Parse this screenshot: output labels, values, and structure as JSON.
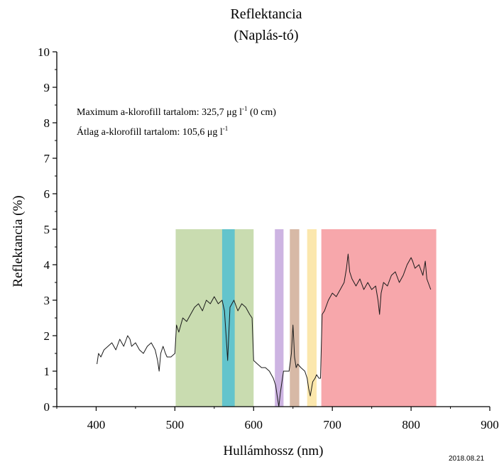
{
  "chart_data": {
    "type": "line",
    "title": "Reflektancia",
    "subtitle": "(Naplás-tó)",
    "xlabel": "Hullámhossz (nm)",
    "ylabel": "Reflektancia (%)",
    "xlim": [
      350,
      900
    ],
    "ylim": [
      0,
      10
    ],
    "x_ticks": [
      400,
      500,
      600,
      700,
      800,
      900
    ],
    "y_ticks": [
      0,
      1,
      2,
      3,
      4,
      5,
      6,
      7,
      8,
      9,
      10
    ],
    "grid": false,
    "annotations": [
      {
        "pre": "Maximum a-klorofill tartalom: 325,7 μg l",
        "sup": "-1",
        "post": " (0 cm)"
      },
      {
        "pre": "Átlag a-klorofill tartalom: 105,6 μg l",
        "sup": "-1",
        "post": ""
      }
    ],
    "date_stamp": "2018.08.21",
    "bands": [
      {
        "x0": 501,
        "x1": 600,
        "y1": 5,
        "color": "#c9dcb0"
      },
      {
        "x0": 560,
        "x1": 576,
        "y1": 5,
        "color": "#63c4cc"
      },
      {
        "x0": 627,
        "x1": 638,
        "y1": 5,
        "color": "#cdb4e2"
      },
      {
        "x0": 646,
        "x1": 658,
        "y1": 5,
        "color": "#d7b9a6"
      },
      {
        "x0": 668,
        "x1": 680,
        "y1": 5,
        "color": "#fbe7ad"
      },
      {
        "x0": 686,
        "x1": 832,
        "y1": 5,
        "color": "#f7a7ab"
      }
    ],
    "series": [
      {
        "color": "#1a1a1a",
        "x": [
          401,
          403,
          406,
          410,
          415,
          420,
          425,
          430,
          435,
          440,
          443,
          445,
          450,
          455,
          460,
          465,
          470,
          475,
          478,
          480,
          482,
          485,
          488,
          490,
          495,
          500,
          502,
          505,
          510,
          515,
          520,
          525,
          530,
          535,
          540,
          545,
          550,
          555,
          560,
          563,
          565,
          567,
          568,
          570,
          575,
          580,
          585,
          590,
          595,
          598,
          600,
          605,
          610,
          615,
          620,
          625,
          628,
          630,
          632,
          634,
          636,
          638,
          640,
          645,
          648,
          650,
          651,
          652,
          654,
          656,
          660,
          665,
          668,
          670,
          672,
          675,
          678,
          680,
          683,
          685,
          687,
          690,
          695,
          700,
          705,
          710,
          715,
          718,
          720,
          722,
          725,
          730,
          735,
          740,
          745,
          750,
          755,
          758,
          760,
          762,
          765,
          770,
          775,
          780,
          785,
          790,
          795,
          800,
          802,
          805,
          810,
          815,
          818,
          820,
          825
        ],
        "y": [
          1.2,
          1.5,
          1.4,
          1.6,
          1.7,
          1.8,
          1.6,
          1.9,
          1.7,
          2.0,
          1.9,
          1.7,
          1.8,
          1.6,
          1.5,
          1.7,
          1.8,
          1.6,
          1.3,
          1.0,
          1.5,
          1.7,
          1.5,
          1.4,
          1.4,
          1.5,
          2.3,
          2.1,
          2.5,
          2.4,
          2.6,
          2.8,
          2.9,
          2.7,
          3.0,
          2.9,
          3.1,
          2.9,
          3.0,
          2.7,
          2.0,
          1.3,
          1.8,
          2.8,
          3.0,
          2.7,
          2.9,
          2.8,
          2.6,
          2.5,
          1.3,
          1.2,
          1.1,
          1.1,
          1.0,
          0.8,
          0.6,
          0.3,
          0.0,
          0.4,
          0.7,
          1.0,
          1.0,
          1.0,
          1.5,
          2.3,
          1.9,
          1.4,
          1.1,
          1.2,
          1.1,
          1.0,
          0.8,
          0.5,
          0.3,
          0.7,
          0.8,
          0.9,
          0.8,
          0.8,
          2.6,
          2.7,
          3.0,
          3.2,
          3.1,
          3.3,
          3.5,
          3.9,
          4.3,
          3.8,
          3.6,
          3.4,
          3.6,
          3.3,
          3.5,
          3.3,
          3.4,
          3.0,
          2.6,
          3.2,
          3.5,
          3.4,
          3.7,
          3.8,
          3.5,
          3.7,
          4.0,
          4.2,
          4.1,
          3.9,
          4.0,
          3.7,
          4.1,
          3.6,
          3.3
        ]
      }
    ]
  }
}
